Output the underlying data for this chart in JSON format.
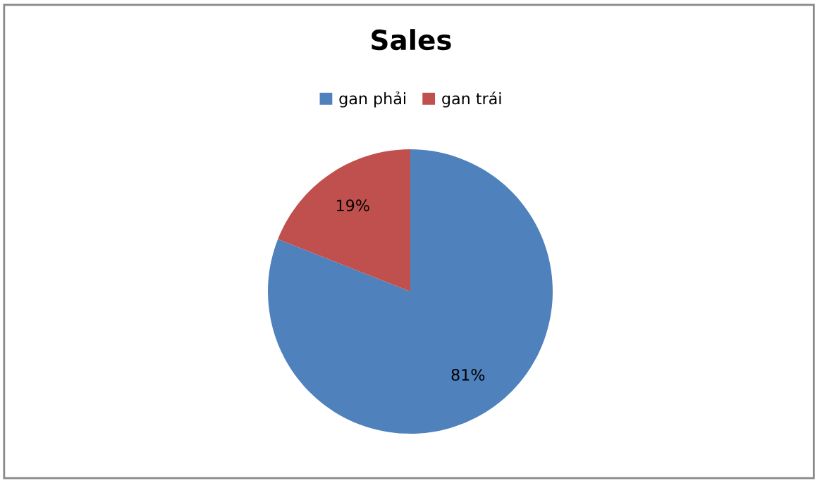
{
  "chart_data": {
    "type": "pie",
    "title": "Sales",
    "categories": [
      "gan phải",
      "gan trái"
    ],
    "values": [
      81,
      19
    ],
    "colors": [
      "#4f81bd",
      "#c0504d"
    ],
    "value_labels": [
      "81%",
      "19%"
    ],
    "legend": "top"
  }
}
